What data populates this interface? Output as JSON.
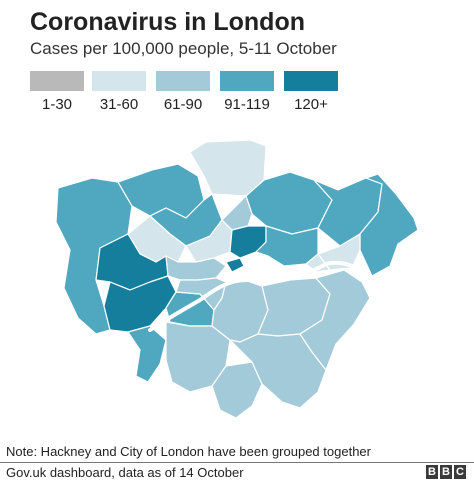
{
  "title": "Coronavirus in London",
  "subtitle": "Cases per 100,000 people, 5-11 October",
  "legend": [
    {
      "label": "1-30",
      "color": "#b9b9b9"
    },
    {
      "label": "31-60",
      "color": "#d4e5ec"
    },
    {
      "label": "61-90",
      "color": "#a3cad9"
    },
    {
      "label": "91-119",
      "color": "#4fa8c0"
    },
    {
      "label": "120+",
      "color": "#147e9c"
    }
  ],
  "note": "Note: Hackney and City of London have been grouped together",
  "source": "Gov.uk dashboard, data as of 14 October",
  "logo": [
    "B",
    "B",
    "C"
  ],
  "colors": {
    "c31_60": "#d4e5ec",
    "c61_90": "#a3cad9",
    "c91_119": "#4fa8c0",
    "c120": "#147e9c",
    "river": "#ffffff"
  }
}
